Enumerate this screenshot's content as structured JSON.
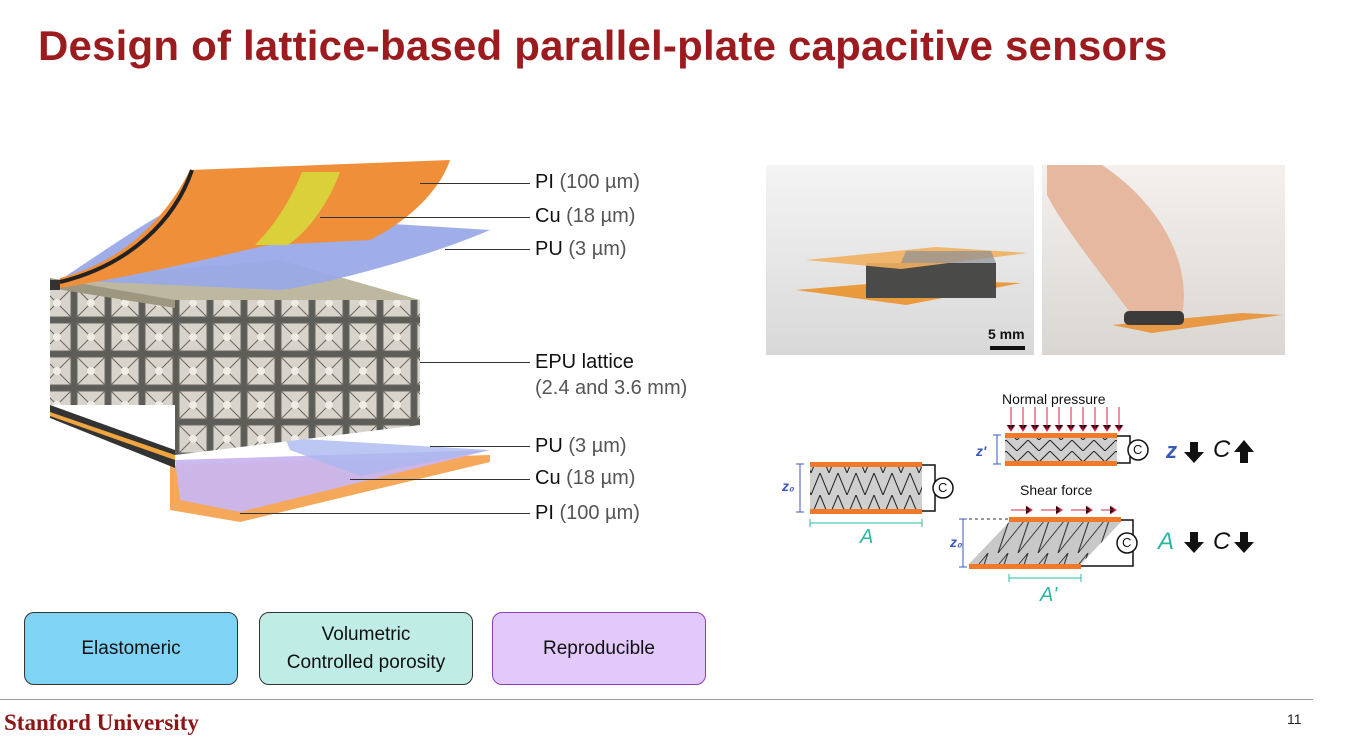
{
  "slide": {
    "title": "Design of lattice-based parallel-plate capacitive sensors",
    "page_number": "11",
    "footer_logo": "Stanford University"
  },
  "layers": [
    {
      "name": "PI",
      "thickness": "(100 µm)"
    },
    {
      "name": "Cu",
      "thickness": "(18 µm)"
    },
    {
      "name": "PU",
      "thickness": "(3 µm)"
    },
    {
      "name": "EPU lattice",
      "thickness": "(2.4 and 3.6 mm)"
    },
    {
      "name": "PU",
      "thickness": "(3 µm)"
    },
    {
      "name": "Cu",
      "thickness": "(18 µm)"
    },
    {
      "name": "PI",
      "thickness": "(100 µm)"
    }
  ],
  "photos": {
    "scale_bar": "5 mm"
  },
  "diagram": {
    "normal_pressure": "Normal pressure",
    "shear_force": "Shear force",
    "z0": "z₀",
    "z_prime": "z'",
    "area": "A",
    "area_prime": "A'",
    "capacitor_symbol": "C",
    "row1_symbol_z": "z",
    "row1_symbol_c": "C",
    "row2_symbol_a": "A",
    "row2_symbol_c": "C"
  },
  "properties": [
    {
      "line1": "Elastomeric",
      "line2": ""
    },
    {
      "line1": "Volumetric",
      "line2": "Controlled porosity"
    },
    {
      "line1": "Reproducible",
      "line2": ""
    }
  ],
  "colors": {
    "title": "#9b1b1f",
    "box_elastomeric": "#7fd3f5",
    "box_volumetric": "#bfece5",
    "box_reproducible": "#e2c8fb",
    "copper_orange": "#f07a2a",
    "teal_symbol": "#2bb8a3",
    "blue_symbol": "#3a58b8",
    "arrow_red": "#d0294a"
  }
}
